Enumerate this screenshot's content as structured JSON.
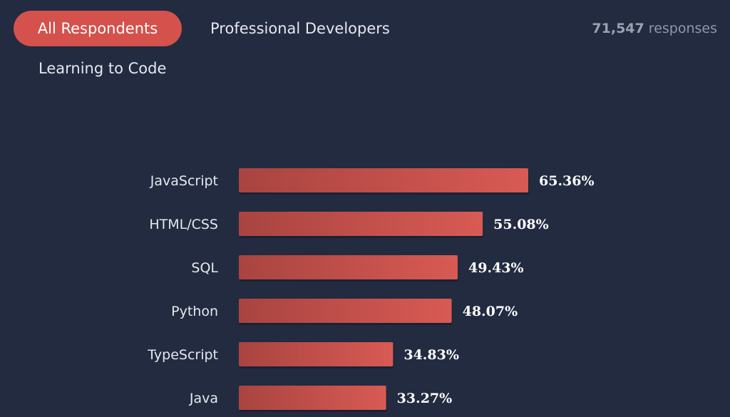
{
  "tabs": [
    {
      "label": "All Respondents",
      "active": true
    },
    {
      "label": "Professional Developers",
      "active": false
    },
    {
      "label": "Learning to Code",
      "active": false
    }
  ],
  "responses": {
    "count": "71,547",
    "label": "responses"
  },
  "colors": {
    "background": "#222b40",
    "bar_dark": "#a94440",
    "bar_light": "#d85a54",
    "active_tab": "#d4514c"
  },
  "chart_data": {
    "type": "bar",
    "orientation": "horizontal",
    "categories": [
      "JavaScript",
      "HTML/CSS",
      "SQL",
      "Python",
      "TypeScript",
      "Java"
    ],
    "values": [
      65.36,
      55.08,
      49.43,
      48.07,
      34.83,
      33.27
    ],
    "value_labels": [
      "65.36%",
      "55.08%",
      "49.43%",
      "48.07%",
      "34.83%",
      "33.27%"
    ],
    "unit": "%",
    "xlim": [
      0,
      100
    ],
    "grid": false,
    "legend": "none"
  }
}
